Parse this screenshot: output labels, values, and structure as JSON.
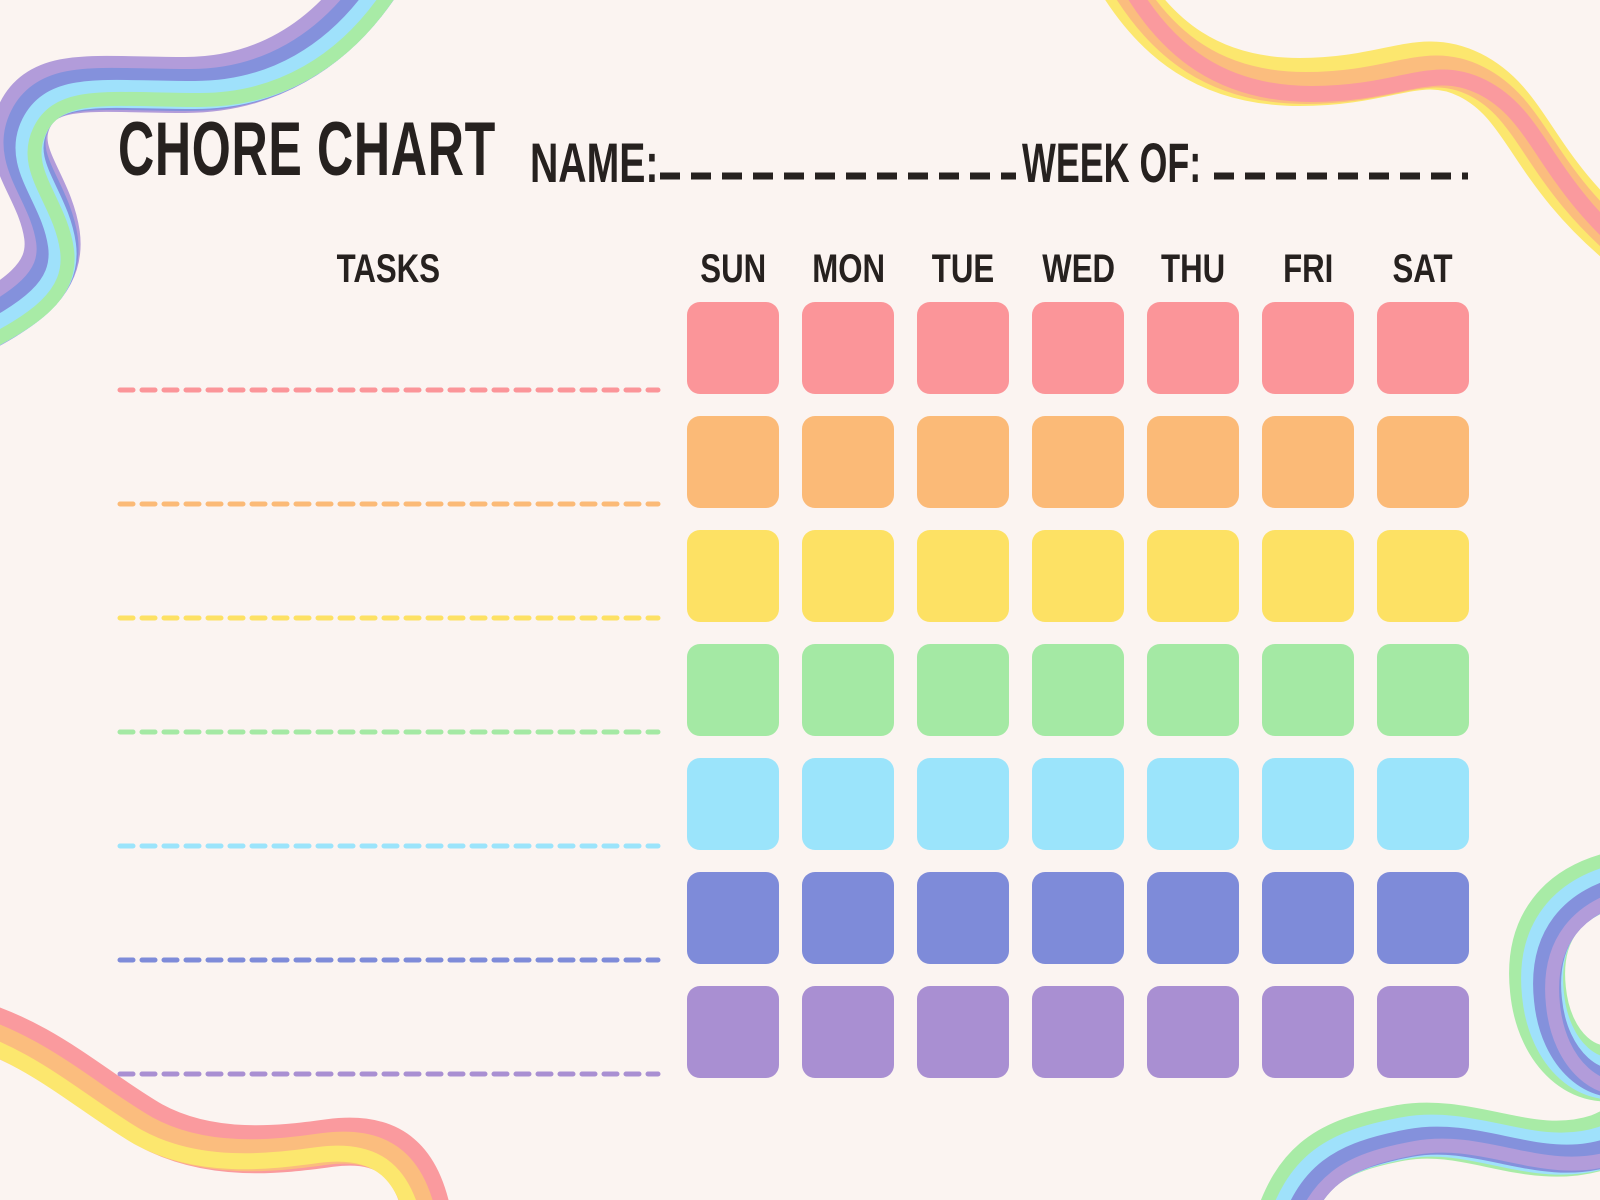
{
  "page": {
    "background": "#FBF4F1",
    "text_color": "#26211F"
  },
  "header": {
    "title": "CHORE CHART",
    "name_label": "NAME:",
    "name_value": "",
    "week_label": "WEEK OF:",
    "week_value": ""
  },
  "table": {
    "tasks_header": "TASKS",
    "days": [
      "SUN",
      "MON",
      "TUE",
      "WED",
      "THU",
      "FRI",
      "SAT"
    ],
    "rows": [
      {
        "task": "",
        "color_name": "pink",
        "hex": "#FB9599"
      },
      {
        "task": "",
        "color_name": "orange",
        "hex": "#FBBA77"
      },
      {
        "task": "",
        "color_name": "yellow",
        "hex": "#FDE164"
      },
      {
        "task": "",
        "color_name": "green",
        "hex": "#A4E9A4"
      },
      {
        "task": "",
        "color_name": "sky-blue",
        "hex": "#9BE4FB"
      },
      {
        "task": "",
        "color_name": "periwinkle",
        "hex": "#7E8BD9"
      },
      {
        "task": "",
        "color_name": "purple",
        "hex": "#A98FD2"
      }
    ]
  },
  "decorations": {
    "ribbon_top_left": {
      "colors": [
        "#B29CDA",
        "#8491DC",
        "#9FE1FB",
        "#A8EBA6"
      ]
    },
    "ribbon_top_right": {
      "colors": [
        "#FCE76E",
        "#FBBD7E",
        "#FA9A9E"
      ]
    },
    "ribbon_bottom_left": {
      "colors": [
        "#FA9A9E",
        "#FBBD7E",
        "#FCE76E"
      ]
    },
    "ribbon_bottom_right": {
      "colors": [
        "#A8EBA6",
        "#9FE1FB",
        "#8491DC",
        "#B29CDA"
      ]
    }
  }
}
